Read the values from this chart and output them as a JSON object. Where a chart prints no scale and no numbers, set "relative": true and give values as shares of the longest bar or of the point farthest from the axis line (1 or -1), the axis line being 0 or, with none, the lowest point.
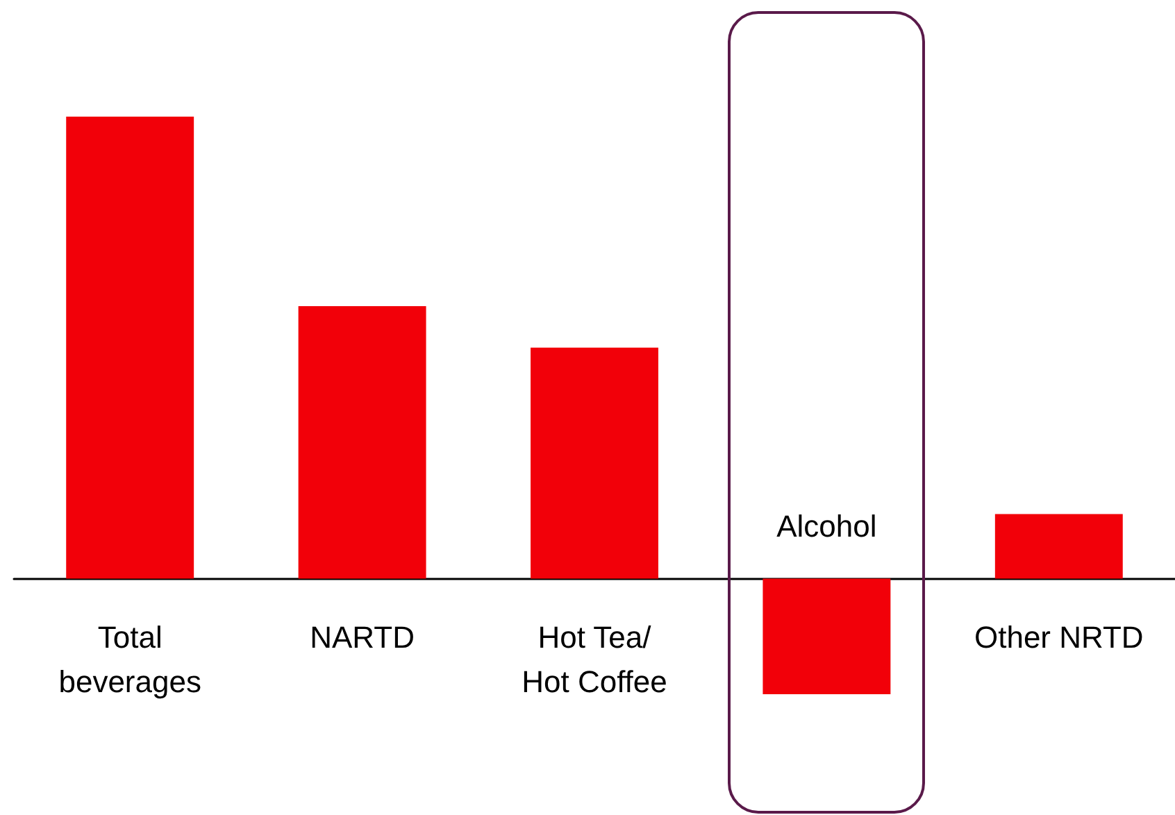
{
  "chart_data": {
    "type": "bar",
    "relative": true,
    "categories": [
      "Total\nbeverages",
      "NARTD",
      "Hot Tea/\nHot Coffee",
      "Alcohol",
      "Other NRTD"
    ],
    "values": [
      1,
      0.59,
      0.5,
      -0.25,
      0.14
    ],
    "color": "#f20009"
  }
}
